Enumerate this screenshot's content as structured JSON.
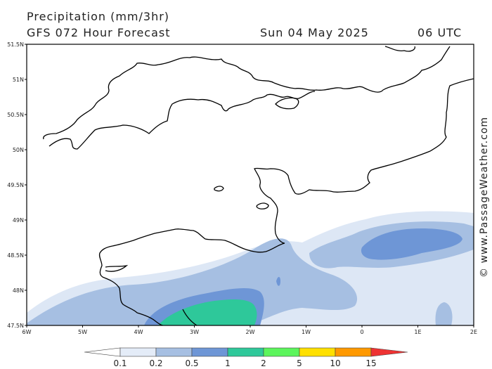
{
  "header": {
    "title": "Precipitation (mm/3hr)",
    "subtitle": "GFS 072 Hour Forecast",
    "date": "Sun 04 May 2025",
    "time": "06 UTC"
  },
  "axes": {
    "lat_labels": [
      "51.5N",
      "51N",
      "50.5N",
      "50N",
      "49.5N",
      "49N",
      "48.5N",
      "48N",
      "47.5N"
    ],
    "lon_labels": [
      "6W",
      "5W",
      "4W",
      "3W",
      "2W",
      "1W",
      "0",
      "1E",
      "2E"
    ]
  },
  "credit": "© www.PassageWeather.com",
  "legend": {
    "values": [
      "0.1",
      "0.2",
      "0.5",
      "1",
      "2",
      "5",
      "10",
      "15"
    ],
    "colors": [
      "#ffffff",
      "#e4ecf8",
      "#a6bfe2",
      "#6e96d6",
      "#2ec89a",
      "#5cf55c",
      "#ffe000",
      "#ff9900",
      "#ee3333"
    ]
  },
  "precip_colors": {
    "light": "#dde7f5",
    "mid": "#a6bfe2",
    "heavy": "#6e96d6",
    "green": "#2ec89a"
  }
}
